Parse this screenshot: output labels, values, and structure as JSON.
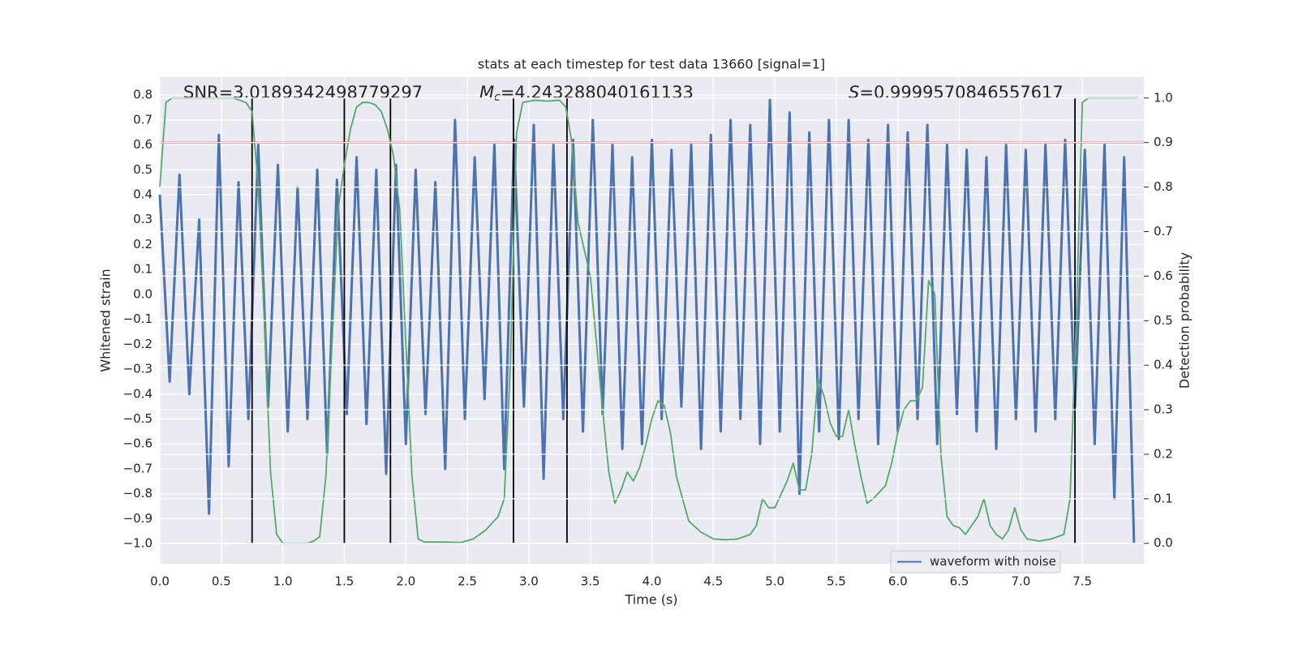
{
  "chart_data": {
    "type": "line",
    "title": "stats at each timestep for test data 13660 [signal=1]",
    "x_label": "Time (s)",
    "y_label": "Whitened strain",
    "y2_label": "Detection probability",
    "annotations": [
      {
        "text": "SNR=3.0189342498779297"
      },
      {
        "italic": "M",
        "subscript": "c",
        "text": "=4.243288040161133"
      },
      {
        "italic": "S",
        "text": "=0.9999570846557617"
      }
    ],
    "xlim": [
      0,
      8
    ],
    "ylim": [
      -1.081,
      0.872
    ],
    "y2lim": [
      -0.046,
      1.047
    ],
    "xticks": [
      {
        "value": 0,
        "label": "0.0"
      },
      0.5,
      {
        "value": 1,
        "label": "1.0"
      },
      1.5,
      {
        "value": 2,
        "label": "2.0"
      },
      2.5,
      {
        "value": 3,
        "label": "3.0"
      },
      3.5,
      {
        "value": 4,
        "label": "4.0"
      },
      4.5,
      {
        "value": 5,
        "label": "5.0"
      },
      5.5,
      {
        "value": 6,
        "label": "6.0"
      },
      6.5,
      {
        "value": 7,
        "label": "7.0"
      },
      7.5
    ],
    "yticks": [
      {
        "value": -1,
        "label": "−1.0"
      },
      {
        "value": -0.9,
        "label": "−0.9"
      },
      {
        "value": -0.8,
        "label": "−0.8"
      },
      {
        "value": -0.7,
        "label": "−0.7"
      },
      {
        "value": -0.6,
        "label": "−0.6"
      },
      {
        "value": -0.5,
        "label": "−0.5"
      },
      {
        "value": -0.4,
        "label": "−0.4"
      },
      {
        "value": -0.3,
        "label": "−0.3"
      },
      {
        "value": -0.2,
        "label": "−0.2"
      },
      {
        "value": -0.1,
        "label": "−0.1"
      },
      {
        "value": 0,
        "label": "0.0"
      },
      0.1,
      0.2,
      0.3,
      0.4,
      0.5,
      0.6,
      0.7,
      0.8
    ],
    "y2ticks": [
      {
        "value": 0,
        "label": "0.0"
      },
      0.1,
      0.2,
      0.3,
      0.4,
      0.5,
      0.6,
      0.7,
      0.8,
      0.9,
      {
        "value": 1,
        "label": "1.0"
      }
    ],
    "grid": true,
    "legend": "lower right",
    "threshold": {
      "value": 0.9,
      "axis": "y2",
      "color": "#c44e52"
    },
    "markers_x": [
      0.75,
      1.5,
      1.875,
      2.875,
      3.31,
      7.44
    ],
    "series": [
      {
        "name": "waveform with noise",
        "color": "#4c72b0",
        "x": [
          0,
          0.08,
          0.16,
          0.24,
          0.32,
          0.4,
          0.48,
          0.56,
          0.64,
          0.72,
          0.8,
          0.88,
          0.96,
          1.04,
          1.12,
          1.2,
          1.28,
          1.36,
          1.44,
          1.52,
          1.6,
          1.68,
          1.76,
          1.84,
          1.92,
          2,
          2.08,
          2.16,
          2.24,
          2.32,
          2.4,
          2.48,
          2.56,
          2.64,
          2.72,
          2.8,
          2.88,
          2.96,
          3.04,
          3.12,
          3.2,
          3.28,
          3.36,
          3.44,
          3.52,
          3.6,
          3.68,
          3.76,
          3.84,
          3.92,
          4,
          4.08,
          4.16,
          4.24,
          4.32,
          4.4,
          4.48,
          4.56,
          4.64,
          4.72,
          4.8,
          4.88,
          4.96,
          5.04,
          5.12,
          5.2,
          5.28,
          5.36,
          5.44,
          5.52,
          5.6,
          5.68,
          5.76,
          5.84,
          5.92,
          6,
          6.08,
          6.16,
          6.24,
          6.32,
          6.4,
          6.48,
          6.56,
          6.64,
          6.72,
          6.8,
          6.88,
          6.96,
          7.04,
          7.12,
          7.2,
          7.28,
          7.36,
          7.44,
          7.52,
          7.6,
          7.68,
          7.76,
          7.84,
          7.92
        ],
        "values": [
          0.4,
          -0.35,
          0.48,
          -0.4,
          0.3,
          -0.88,
          0.64,
          -0.69,
          0.45,
          -0.5,
          0.6,
          -0.45,
          0.52,
          -0.55,
          0.43,
          -0.5,
          0.5,
          -0.64,
          0.46,
          -0.48,
          0.55,
          -0.52,
          0.5,
          -0.72,
          0.52,
          -0.6,
          0.5,
          -0.48,
          0.45,
          -0.7,
          0.7,
          -0.5,
          0.55,
          -0.42,
          0.6,
          -0.7,
          0.62,
          -0.45,
          0.68,
          -0.74,
          0.6,
          -0.5,
          0.62,
          -0.55,
          0.7,
          -0.48,
          0.6,
          -0.62,
          0.55,
          -0.6,
          0.62,
          -0.5,
          0.58,
          -0.45,
          0.6,
          -0.62,
          0.64,
          -0.55,
          0.7,
          -0.5,
          0.68,
          -0.6,
          0.78,
          -0.55,
          0.73,
          -0.8,
          0.65,
          -0.55,
          0.7,
          -0.58,
          0.7,
          -0.5,
          0.62,
          -0.6,
          0.68,
          -0.55,
          0.65,
          -0.5,
          0.68,
          -0.6,
          0.6,
          -0.48,
          0.58,
          -0.55,
          0.55,
          -0.62,
          0.6,
          -0.5,
          0.58,
          -0.55,
          0.6,
          -0.5,
          0.62,
          -0.45,
          0.58,
          -0.6,
          0.6,
          -0.82,
          0.55,
          -1.0
        ]
      },
      {
        "name": "Detection probability",
        "color": "#55a868",
        "axis": "y2",
        "x": [
          0,
          0.05,
          0.1,
          0.6,
          0.7,
          0.75,
          0.8,
          0.85,
          0.9,
          0.95,
          1,
          1.1,
          1.2,
          1.25,
          1.3,
          1.35,
          1.4,
          1.45,
          1.5,
          1.55,
          1.6,
          1.65,
          1.7,
          1.75,
          1.8,
          1.85,
          1.9,
          1.95,
          2,
          2.05,
          2.1,
          2.15,
          2.3,
          2.45,
          2.55,
          2.65,
          2.75,
          2.8,
          2.85,
          2.9,
          2.95,
          3.05,
          3.15,
          3.25,
          3.3,
          3.35,
          3.4,
          3.45,
          3.5,
          3.55,
          3.6,
          3.65,
          3.7,
          3.75,
          3.8,
          3.85,
          3.9,
          3.95,
          4,
          4.05,
          4.1,
          4.15,
          4.2,
          4.3,
          4.4,
          4.5,
          4.6,
          4.7,
          4.8,
          4.85,
          4.9,
          4.95,
          5,
          5.1,
          5.15,
          5.2,
          5.25,
          5.3,
          5.35,
          5.4,
          5.45,
          5.5,
          5.55,
          5.6,
          5.65,
          5.7,
          5.75,
          5.8,
          5.9,
          5.95,
          6,
          6.05,
          6.1,
          6.15,
          6.2,
          6.25,
          6.3,
          6.35,
          6.4,
          6.45,
          6.5,
          6.55,
          6.6,
          6.65,
          6.7,
          6.75,
          6.8,
          6.85,
          6.9,
          6.95,
          7,
          7.05,
          7.15,
          7.25,
          7.3,
          7.35,
          7.4,
          7.45,
          7.5,
          7.55,
          7.95
        ],
        "values": [
          0.8,
          0.99,
          1,
          1,
          0.99,
          0.97,
          0.8,
          0.5,
          0.16,
          0.02,
          0,
          0,
          0,
          0.005,
          0.015,
          0.15,
          0.45,
          0.75,
          0.85,
          0.93,
          0.98,
          0.99,
          0.99,
          0.985,
          0.97,
          0.93,
          0.87,
          0.75,
          0.45,
          0.15,
          0.01,
          0.003,
          0.003,
          0.002,
          0.01,
          0.03,
          0.06,
          0.1,
          0.4,
          0.92,
          0.99,
          0.995,
          0.993,
          0.995,
          0.98,
          0.9,
          0.72,
          0.66,
          0.6,
          0.45,
          0.3,
          0.16,
          0.09,
          0.12,
          0.16,
          0.14,
          0.17,
          0.22,
          0.28,
          0.32,
          0.31,
          0.25,
          0.15,
          0.05,
          0.025,
          0.01,
          0.008,
          0.01,
          0.02,
          0.04,
          0.1,
          0.08,
          0.08,
          0.14,
          0.18,
          0.12,
          0.12,
          0.2,
          0.37,
          0.33,
          0.27,
          0.24,
          0.24,
          0.3,
          0.22,
          0.15,
          0.09,
          0.1,
          0.13,
          0.18,
          0.25,
          0.3,
          0.32,
          0.32,
          0.35,
          0.59,
          0.56,
          0.2,
          0.06,
          0.04,
          0.035,
          0.02,
          0.04,
          0.06,
          0.1,
          0.04,
          0.02,
          0.01,
          0.03,
          0.08,
          0.03,
          0.01,
          0.005,
          0.01,
          0.015,
          0.02,
          0.1,
          0.5,
          0.99,
          1,
          1
        ]
      }
    ]
  }
}
